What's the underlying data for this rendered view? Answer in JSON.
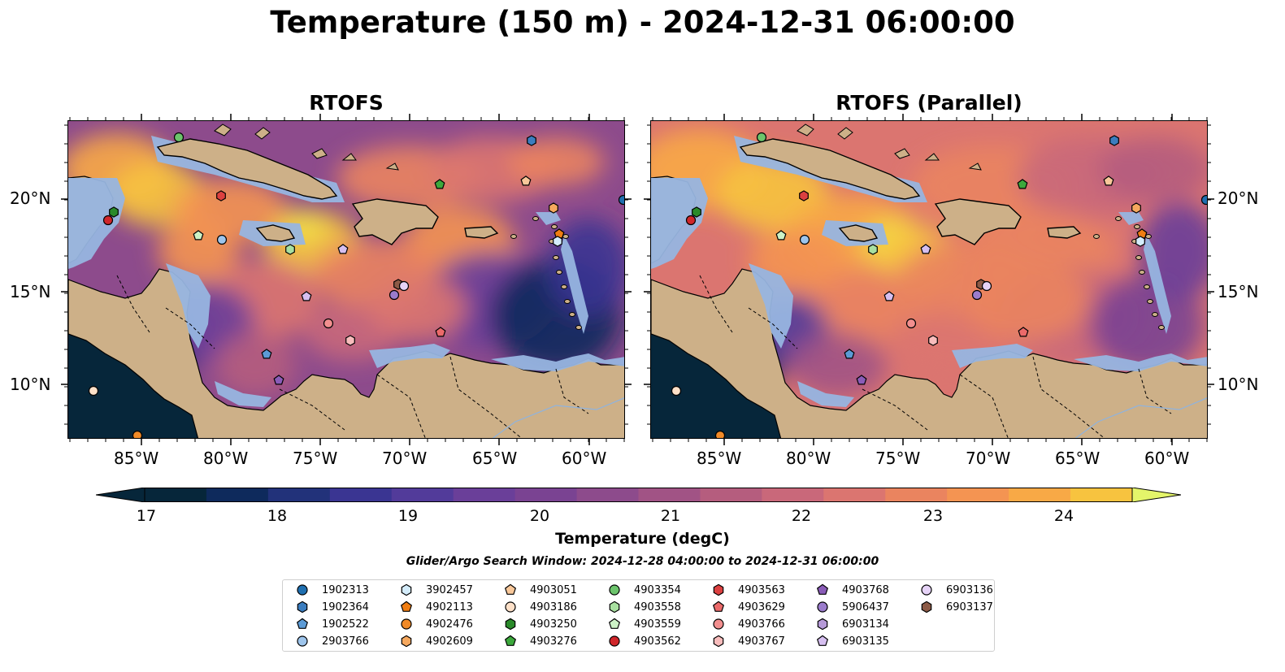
{
  "title": "Temperature (150 m) - 2024-12-31 06:00:00",
  "panels": [
    {
      "title": "RTOFS"
    },
    {
      "title": "RTOFS (Parallel)"
    }
  ],
  "axes": {
    "lon_ticks": [
      "85°W",
      "80°W",
      "75°W",
      "70°W",
      "65°W",
      "60°W"
    ],
    "lat_ticks": [
      "20°N",
      "15°N",
      "10°N"
    ]
  },
  "colorbar": {
    "label": "Temperature (degC)",
    "ticks": [
      "17",
      "18",
      "19",
      "20",
      "21",
      "22",
      "23",
      "24"
    ],
    "range": [
      16.5,
      24.5
    ],
    "colors": [
      "#06263a",
      "#0e2a5c",
      "#22327a",
      "#3a3592",
      "#523b9a",
      "#6a3f99",
      "#7a4392",
      "#8d4b8c",
      "#a15385",
      "#b55d7e",
      "#c9687a",
      "#db7570",
      "#ea845f",
      "#f49452",
      "#f8a946",
      "#f7c33f",
      "#f2dd46"
    ]
  },
  "search_window": "Glider/Argo Search Window: 2024-12-28 04:00:00 to 2024-12-31 06:00:00",
  "legend": [
    {
      "id": "1902313",
      "marker": "circle",
      "color": "#1f6fb0"
    },
    {
      "id": "1902364",
      "marker": "hexagon",
      "color": "#3b7dbf"
    },
    {
      "id": "1902522",
      "marker": "pentagon",
      "color": "#5c9bd6"
    },
    {
      "id": "2903766",
      "marker": "circle",
      "color": "#9ec5ec"
    },
    {
      "id": "3902457",
      "marker": "hexagon",
      "color": "#d4ecfb"
    },
    {
      "id": "4902113",
      "marker": "pentagon",
      "color": "#f07d12"
    },
    {
      "id": "4902476",
      "marker": "circle",
      "color": "#f08a28"
    },
    {
      "id": "4902609",
      "marker": "hexagon",
      "color": "#f6a85e"
    },
    {
      "id": "4903051",
      "marker": "pentagon",
      "color": "#f9c89a"
    },
    {
      "id": "4903186",
      "marker": "circle",
      "color": "#fde0c8"
    },
    {
      "id": "4903250",
      "marker": "hexagon",
      "color": "#2a8a2a"
    },
    {
      "id": "4903276",
      "marker": "pentagon",
      "color": "#3ca83c"
    },
    {
      "id": "4903354",
      "marker": "circle",
      "color": "#6cc46c"
    },
    {
      "id": "4903558",
      "marker": "hexagon",
      "color": "#a8e0a0"
    },
    {
      "id": "4903559",
      "marker": "pentagon",
      "color": "#cdf2c6"
    },
    {
      "id": "4903562",
      "marker": "circle",
      "color": "#d0262a"
    },
    {
      "id": "4903563",
      "marker": "hexagon",
      "color": "#dc4040"
    },
    {
      "id": "4903629",
      "marker": "pentagon",
      "color": "#eb6a6a"
    },
    {
      "id": "4903766",
      "marker": "circle",
      "color": "#f28f8f"
    },
    {
      "id": "4903767",
      "marker": "hexagon",
      "color": "#f8bcbc"
    },
    {
      "id": "4903768",
      "marker": "pentagon",
      "color": "#8a5cb8"
    },
    {
      "id": "5906437",
      "marker": "circle",
      "color": "#9b7ccc"
    },
    {
      "id": "6903134",
      "marker": "hexagon",
      "color": "#b69ad8"
    },
    {
      "id": "6903135",
      "marker": "pentagon",
      "color": "#d6bff0"
    },
    {
      "id": "6903136",
      "marker": "circle",
      "color": "#e6d3f7"
    },
    {
      "id": "6903137",
      "marker": "hexagon",
      "color": "#8c5a46"
    }
  ],
  "colors": {
    "land": "#cdb088",
    "shelf": "#97b5e0",
    "deep": "#06263a"
  }
}
